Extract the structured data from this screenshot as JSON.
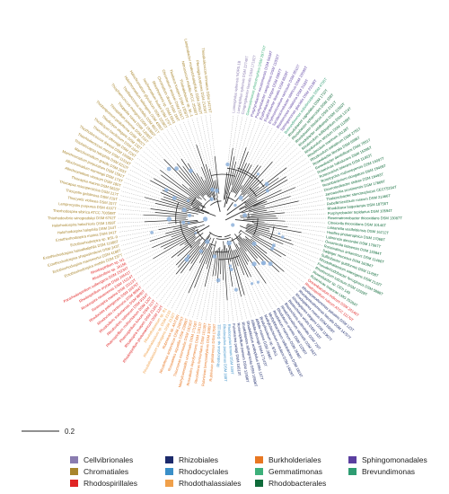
{
  "scale_bar": {
    "label": "0.2",
    "value": 0.2
  },
  "legend": [
    {
      "name": "Cellvibrionales",
      "color": "#8A7CB0"
    },
    {
      "name": "Rhizobiales",
      "color": "#1C2A6B"
    },
    {
      "name": "Burkholderiales",
      "color": "#E87722"
    },
    {
      "name": "Sphingomonadales",
      "color": "#5B3FA0"
    },
    {
      "name": "Chromatiales",
      "color": "#A8852C"
    },
    {
      "name": "Rhodocyclales",
      "color": "#3A8FC8"
    },
    {
      "name": "Gemmatimonas",
      "color": "#3DB07A"
    },
    {
      "name": "Brevundimonas",
      "color": "#2E9C72"
    },
    {
      "name": "Rhodospirillales",
      "color": "#E02424"
    },
    {
      "name": "Rhodothalassiales",
      "color": "#F0A04A"
    },
    {
      "name": "Rhodobacterales",
      "color": "#0F6B3A"
    }
  ],
  "leaf_groups": [
    {
      "order": "Cellvibrionales",
      "color": "#8A7CB0",
      "leaves": [
        "Luminiphilus syltensis NOR5-1B",
        "Luminiphilus syltensis DSM 22749T",
        "Congregibacter litoralis DSM 17192T"
      ]
    },
    {
      "order": "Gemmatimonas",
      "color": "#3DB07A",
      "leaves": [
        "Gemmatimonas phototrophica DSM 29774T"
      ]
    },
    {
      "order": "Sphingomonadales",
      "color": "#5B3FA0",
      "leaves": [
        "Porphyrobacter neustonensis DSM 9434T",
        "Porphyrobacter sanguineus DSM 11032T",
        "Erythrobacter longus DSM 6997T",
        "Erythrobacter litoralis DSM 8509T",
        "Erythromicrobium ramosum DSM 8510T",
        "Sandaracinobacter sibiricus DSM 10590T",
        "Blastomonas natatoria DSM 3183T",
        "Sphingomonas glacialis DSM 23138T"
      ]
    },
    {
      "order": "Brevundimonas",
      "color": "#2E9C72",
      "leaves": [
        "Brevundimonas subvibrioides DSM 4735T"
      ]
    },
    {
      "order": "Rhodobacterales",
      "color": "#0F6B3A",
      "leaves": [
        "Rhodobacter capsulatus DSM 1710T",
        "Rhodobacter sphaeroides DSM 158T",
        "Rhodobacter blasticus DSM 2131T",
        "Rhodobacter veldkampii DSM 11550T",
        "Rhodovulum sulfidophilum DSM 1374T",
        "Rhodovulum strictum DSM 11289T",
        "Rhodovulum marinum JA128T",
        "Rhodovulum adriaticum DSM 2781T",
        "Roseobacter litoralis DSM 6996T",
        "Roseobacter denitrificans DSM 7001T",
        "Roseivivax halodurans DSM 15395T",
        "Roseovarius tolerans DSM 11463T",
        "Roseicyclus mahoneyensis DSM 16097T",
        "Roseibacterium elongatum DSM 19469T",
        "Dinoroseobacter shibae DSM 16493T",
        "Jannaschia seosinensis DSM 17869T",
        "Thalassobacter stenotrophicus CECT5294T",
        "Rubellimicrobium roseum DSM 21466T",
        "Rhodobaca bogoriensis DSM 18756T",
        "Porphyrobacter tepidarius DSM 10594T",
        "Roseinatronobacter thiooxidans DSM 13087T",
        "Citreicella thiooxidans DSM 10146T",
        "Loktanella vestfoldensis DSM 16212T",
        "Hoeflea phototrophica DSM 17068T",
        "Labrenzia alexandrii DSM 17067T",
        "Oceanicola batsensis DSM 15984T",
        "Roseisalinus antarcticus DSM 11466T",
        "Salipiger mucosus DSM 16094T",
        "Sulfitobacter guttiformis DSM 11458T",
        "Rhodothalassium salexigens DSM 2132T",
        "Pseudorhodobacter ferrugineus DSM 5888T",
        "Rhodovulum iodosum DSM 12328T",
        "Roseobacter sp. OCh 149",
        "Roseivivax isoporae LMG 25204T"
      ]
    },
    {
      "order": "Rhodospirillales",
      "color": "#E02424",
      "leaves": [
        "Oceanibaculum indicum DSM 24146T",
        "Rhodospirillum rubrum ATCC 11170T"
      ]
    },
    {
      "order": "Rhizobiales",
      "color": "#1C2A6B",
      "leaves": [
        "Rhodopseudomonas palustris DSM 123T",
        "Rhodopseudomonas faecalis DSM 14757T",
        "Rhodoplanes roseus DSM 5909T",
        "Rhodoplanes elegans DSM 11907T",
        "Blastochloris viridis DSM 133T",
        "Blastochloris sulfoviridis DSM 729T",
        "Rhodomicrobium vannielii DSM 162T",
        "Rhodobium orientis DSM 11290T",
        "Rhodobium marinum DSM 2698T",
        "Methylobacterium radiotolerans DSM 1819T",
        "Methylobacterium nodulans DSM 14829T",
        "Bradyrhizobium sp. BTAi1",
        "Afifella marina DSM 2698T",
        "Afifella pfennigii DSM 17143T",
        "Rhodoblastus acidophilus DSM 137T",
        "Rhodoblastus sphagnicola DSM 16996T",
        "Roseospirillum parvum DSM 12498T",
        "Fulvimarina pelagi DSM 15513T"
      ]
    },
    {
      "order": "Rhodocyclales",
      "color": "#3A8FC8",
      "leaves": [
        "Rhodocyclus tenuis DSM 109T",
        "Rhodocyclus purpureus DSM 168T",
        "Rhodocyclus sp. DSM 111"
      ]
    },
    {
      "order": "Burkholderiales",
      "color": "#E87722",
      "leaves": [
        "Rubrivivax gelatinosus DSM 1709T",
        "Rubrivivax benzoatilyticus DSM 1985T",
        "Rhodoferax fermentans DSM 10138T",
        "Roseateles depolymerans DSM 11813T",
        "Methyloversatilis universalis DSM 17159T",
        "Thiomonas intermedia DSM 18155T",
        "Roseateles aquatilis DSM 23000T",
        "Rhodoferax antarcticus DSM 24876T",
        "Rubrivivax sp. ANT.BR"
      ]
    },
    {
      "order": "Rhodothalassiales",
      "color": "#F0A04A",
      "leaves": [
        "Rhodothalassium salexigens DSM 2132T",
        "Rhodothalassium sp. DSM 2133",
        "Rhodothalassium sp. R1"
      ]
    },
    {
      "order": "Rhodospirillales",
      "color": "#E02424",
      "leaves": [
        "Rhodospirillum photometricum DSM 122T",
        "Rhodospira trueperi DSM 21281T",
        "Phaeospirillum fulvum DSM 113T",
        "Phaeospirillum molischianum DSM 120T",
        "Rhodovibrio salinarum DSM 9154T",
        "Rhodovibrio sodomensis DSM 9895T",
        "Rhodocista centenaria DSM 9894T",
        "Rhodocista pekingensis DSM 16375T",
        "Roseospira marina DSM 15113T",
        "Roseospira navarrensis DSM 15114T",
        "Rhodospirillum oryzae DSM 24541T",
        "Pararhodospirillum sulfexigens DSM 23234T",
        "Rhodovibrio sp. JA156",
        "Rhodospirillum sp. N1"
      ]
    },
    {
      "order": "Chromatiales",
      "color": "#A8852C",
      "leaves": [
        "Ectothiorhodospira mobilis DSM 237T",
        "Ectothiorhodospira marismortui DSM 4180T",
        "Ectothiorhodospira shaposhnikovii DSM 243T",
        "Ectothiorhodospira haloalkaliphila DSM 11080T",
        "Ectothiorhodospira sp. BSL-9",
        "Ectothiorhodospira marina DSM 241T",
        "Halorhodospira halophila DSM 244T",
        "Halorhodospira halochloris DSM 1059T",
        "Thiorhodovibrio winogradskyi DSM 6702T",
        "Thiorhodospira sibirica ATCC 700588T",
        "Lamprocystis purpurea DSM 4197T",
        "Thiocystis violacea DSM 207T",
        "Thiocystis gelatinosa DSM 215T",
        "Thiocapsa roseopersicina DSM 217T",
        "Thiocapsa marina DSM 5653T",
        "Allochromatium vinosum DSM 180T",
        "Allochromatium warmingii DSM 173T",
        "Marichromatium purpuratum DSM 1591T",
        "Marichromatium gracile DSM 203T",
        "Thiohalocapsa halophila DSM 6210T",
        "Thiorhodococcus minor DSM 11518T",
        "Thiorhodococcus drewsii DSM 15006T",
        "Thiococcus pfennigii DSM 226T",
        "Thiodictyon bacillosum DSM 234T",
        "Thiodictyon elegans DSM 232T",
        "Thiolamprovum pedioforme DSM 3802T",
        "Thiospirillum jenense DSM 216T",
        "Thiopedia rosea DSM 12095T",
        "Thiophaeococcus mangrovi DSM 19389T",
        "Thioflavicoccus mobilis DSM 8321T",
        "Halochromatium salexigens DSM 4395T",
        "Halochromatium glycolicum DSM 11080T",
        "Isochromatium buderi DSM 176T",
        "Rheinheimera sp. DSM 5641",
        "Chromatium okenii DSM 169T",
        "Chromatium weissei DSM 5161T",
        "Thiobaca trueperi DSM 13587T",
        "Thiohalobacter sp. BL-1",
        "Nitrococcus mobilis ATCC 25380T",
        "Lamprobacter modestohalophilus DSM 25653T",
        "Pfennigia purpurea DSM 21266T",
        "Thioalkalicoccus limnaeus DSM 14279T"
      ]
    }
  ]
}
